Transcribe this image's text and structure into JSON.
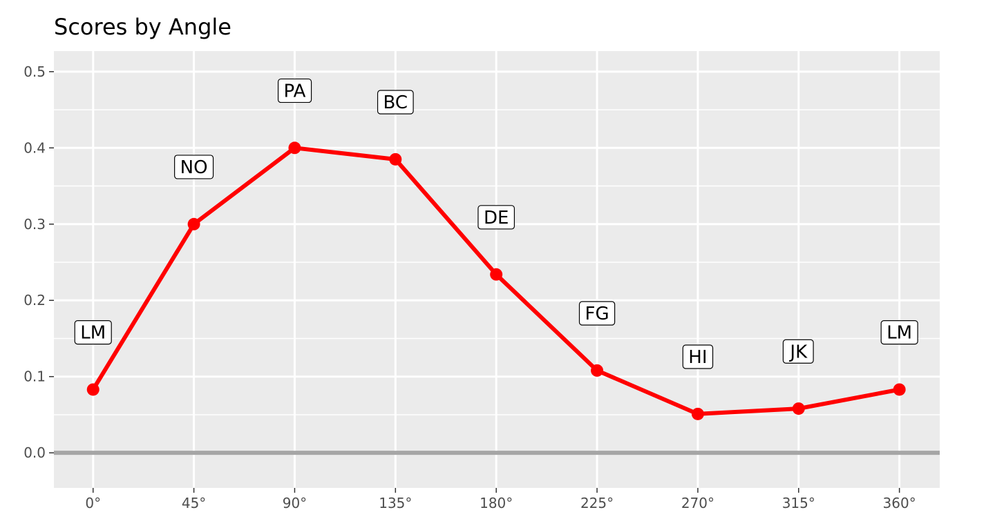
{
  "chart_data": {
    "type": "line",
    "title": "Scores by Angle",
    "xlabel": "",
    "ylabel": "",
    "x": [
      0,
      45,
      90,
      135,
      180,
      225,
      270,
      315,
      360
    ],
    "x_tick_labels": [
      "0°",
      "45°",
      "90°",
      "135°",
      "180°",
      "225°",
      "270°",
      "315°",
      "360°"
    ],
    "y_tick_labels": [
      "0.0",
      "0.1",
      "0.2",
      "0.3",
      "0.4",
      "0.5"
    ],
    "xlim": [
      -17.5,
      378
    ],
    "ylim": [
      -0.046,
      0.527
    ],
    "grid": true,
    "reference_line_y": 0.0,
    "series": [
      {
        "values": [
          0.083,
          0.3,
          0.4,
          0.385,
          0.234,
          0.108,
          0.051,
          0.058,
          0.083
        ],
        "point_labels": [
          "LM",
          "NO",
          "PA",
          "BC",
          "DE",
          "FG",
          "HI",
          "JK",
          "LM"
        ],
        "label_values": [
          0.158,
          0.375,
          0.475,
          0.46,
          0.309,
          0.183,
          0.126,
          0.133,
          0.158
        ]
      }
    ],
    "colors": {
      "series": "#ff0000",
      "panel_background": "#ebebeb",
      "gridline": "#ffffff",
      "reference_line": "#a6a6a6",
      "label_fill": "#ffffff",
      "label_border": "#000000",
      "tick_text": "#4d4d4d"
    }
  }
}
